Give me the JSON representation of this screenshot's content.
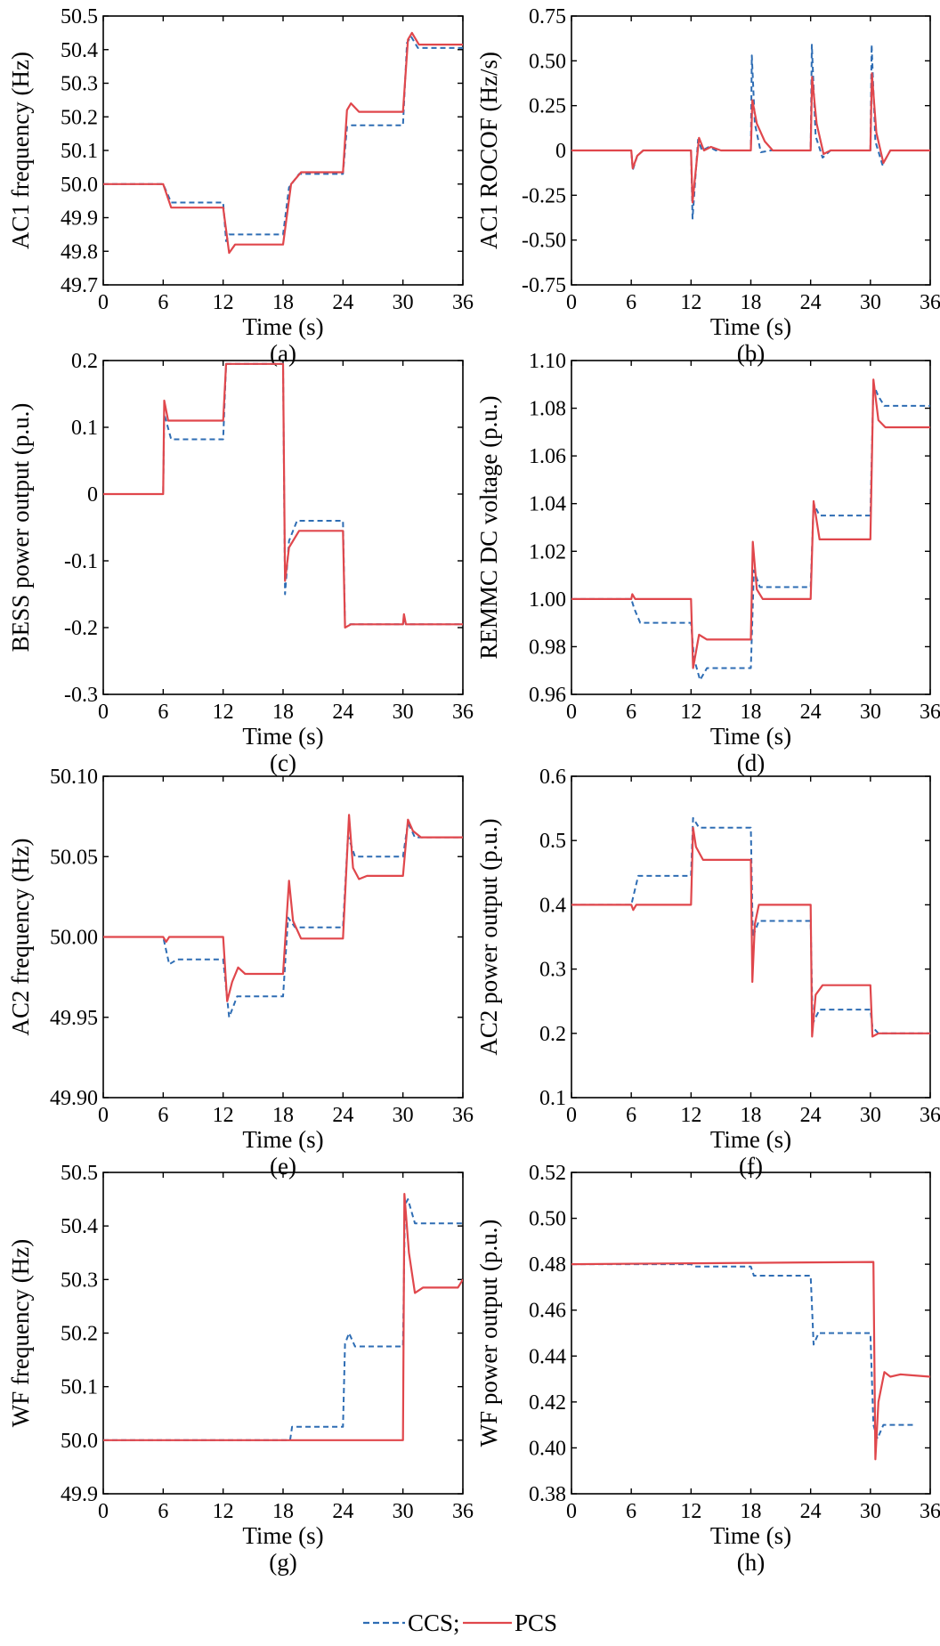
{
  "colors": {
    "ccs": "#2e6db4",
    "pcs": "#e0474c",
    "axis": "#000000"
  },
  "legend": {
    "ccs_label": "CCS;",
    "pcs_label": "PCS"
  },
  "chart_data": [
    {
      "id": "a",
      "type": "line",
      "panel_label": "(a)",
      "xlabel": "Time (s)",
      "ylabel": "AC1 frequency (Hz)",
      "xlim": [
        0,
        36
      ],
      "ylim": [
        49.7,
        50.5
      ],
      "xticks": [
        0,
        6,
        12,
        18,
        24,
        30,
        36
      ],
      "yticks": [
        49.7,
        49.8,
        49.9,
        50.0,
        50.1,
        50.2,
        50.3,
        50.4,
        50.5
      ],
      "ytick_labels": [
        "49.7",
        "49.8",
        "49.9",
        "50.0",
        "50.1",
        "50.2",
        "50.3",
        "50.4",
        "50.5"
      ],
      "series": [
        {
          "name": "CCS",
          "x": [
            0,
            6,
            6.8,
            12,
            12.3,
            12.6,
            13.5,
            18,
            18.6,
            19.6,
            24,
            24.4,
            24.9,
            30,
            30.4,
            30.8,
            31.5,
            36
          ],
          "y": [
            50.0,
            50.0,
            49.945,
            49.945,
            49.83,
            49.85,
            49.85,
            49.85,
            49.99,
            50.03,
            50.03,
            50.17,
            50.175,
            50.175,
            50.42,
            50.44,
            50.405,
            50.405
          ]
        },
        {
          "name": "PCS",
          "x": [
            0,
            6,
            6.8,
            12,
            12.6,
            13.2,
            18,
            18.8,
            19.8,
            24,
            24.4,
            24.8,
            25.6,
            30,
            30.5,
            30.9,
            31.6,
            36
          ],
          "y": [
            50.0,
            50.0,
            49.93,
            49.93,
            49.795,
            49.82,
            49.82,
            50.0,
            50.035,
            50.035,
            50.22,
            50.24,
            50.215,
            50.215,
            50.43,
            50.45,
            50.415,
            50.415
          ]
        }
      ]
    },
    {
      "id": "b",
      "type": "line",
      "panel_label": "(b)",
      "xlabel": "Time (s)",
      "ylabel": "AC1 ROCOF (Hz/s)",
      "xlim": [
        0,
        36
      ],
      "ylim": [
        -0.75,
        0.75
      ],
      "xticks": [
        0,
        6,
        12,
        18,
        24,
        30,
        36
      ],
      "yticks": [
        -0.75,
        -0.5,
        -0.25,
        0,
        0.25,
        0.5,
        0.75
      ],
      "ytick_labels": [
        "-0.75",
        "-0.50",
        "-0.25",
        "0",
        "0.25",
        "0.50",
        "0.75"
      ],
      "series": [
        {
          "name": "CCS",
          "x": [
            0,
            6,
            6.15,
            6.6,
            7.2,
            12,
            12.15,
            12.7,
            13.1,
            13.8,
            14.5,
            18,
            18.1,
            18.4,
            19,
            20,
            24,
            24.12,
            24.5,
            25.2,
            26,
            30,
            30.12,
            30.5,
            31.2,
            32,
            36
          ],
          "y": [
            0,
            0,
            -0.11,
            -0.03,
            0,
            0,
            -0.38,
            0.06,
            0.0,
            0.02,
            0,
            0,
            0.53,
            0.15,
            -0.01,
            0,
            0,
            0.59,
            0.08,
            -0.04,
            0,
            0,
            0.59,
            0.05,
            -0.08,
            0,
            0
          ]
        },
        {
          "name": "PCS",
          "x": [
            0,
            6,
            6.15,
            6.6,
            7.2,
            12,
            12.15,
            12.8,
            13.3,
            14,
            15,
            18,
            18.15,
            18.6,
            19.4,
            20.2,
            24,
            24.15,
            24.6,
            25.3,
            26,
            30,
            30.15,
            30.6,
            31.3,
            32,
            36
          ],
          "y": [
            0,
            0,
            -0.1,
            -0.03,
            0,
            0,
            -0.29,
            0.07,
            0.0,
            0.02,
            0,
            0,
            0.28,
            0.15,
            0.05,
            0,
            0,
            0.41,
            0.15,
            -0.02,
            0,
            0,
            0.43,
            0.1,
            -0.07,
            0,
            0
          ]
        }
      ]
    },
    {
      "id": "c",
      "type": "line",
      "panel_label": "(c)",
      "xlabel": "Time (s)",
      "ylabel": "BESS power output (p.u.)",
      "xlim": [
        0,
        36
      ],
      "ylim": [
        -0.3,
        0.2
      ],
      "xticks": [
        0,
        6,
        12,
        18,
        24,
        30,
        36
      ],
      "yticks": [
        -0.3,
        -0.2,
        -0.1,
        0,
        0.1,
        0.2
      ],
      "ytick_labels": [
        "-0.3",
        "-0.2",
        "-0.1",
        "0",
        "0.1",
        "0.2"
      ],
      "series": [
        {
          "name": "CCS",
          "x": [
            0,
            6,
            6.1,
            6.8,
            12,
            12.3,
            18,
            18.2,
            18.6,
            19.4,
            24,
            24.2,
            24.8,
            30,
            30.1,
            30.3,
            36
          ],
          "y": [
            0,
            0,
            0.12,
            0.082,
            0.082,
            0.195,
            0.195,
            -0.15,
            -0.07,
            -0.04,
            -0.04,
            -0.195,
            -0.195,
            -0.195,
            -0.185,
            -0.195,
            -0.195
          ]
        },
        {
          "name": "PCS",
          "x": [
            0,
            6,
            6.1,
            6.5,
            7.2,
            12,
            12.3,
            18,
            18.2,
            18.6,
            19.6,
            24,
            24.2,
            24.8,
            30,
            30.1,
            30.3,
            36
          ],
          "y": [
            0,
            0,
            0.14,
            0.11,
            0.11,
            0.11,
            0.195,
            0.195,
            -0.13,
            -0.08,
            -0.055,
            -0.055,
            -0.2,
            -0.195,
            -0.195,
            -0.18,
            -0.195,
            -0.195
          ]
        }
      ]
    },
    {
      "id": "d",
      "type": "line",
      "panel_label": "(d)",
      "xlabel": "Time (s)",
      "ylabel": "REMMC DC voltage (p.u.)",
      "xlim": [
        0,
        36
      ],
      "ylim": [
        0.96,
        1.1
      ],
      "xticks": [
        0,
        6,
        12,
        18,
        24,
        30,
        36
      ],
      "yticks": [
        0.96,
        0.98,
        1.0,
        1.02,
        1.04,
        1.06,
        1.08,
        1.1
      ],
      "ytick_labels": [
        "0.96",
        "0.98",
        "1.00",
        "1.02",
        "1.04",
        "1.06",
        "1.08",
        "1.10"
      ],
      "series": [
        {
          "name": "CCS",
          "x": [
            0,
            6,
            6.3,
            6.9,
            12,
            12.3,
            12.9,
            13.6,
            18,
            18.3,
            18.9,
            24,
            24.3,
            24.9,
            30,
            30.3,
            30.8,
            31.4,
            36
          ],
          "y": [
            1.0,
            1.0,
            0.996,
            0.99,
            0.99,
            0.975,
            0.966,
            0.971,
            0.971,
            1.012,
            1.005,
            1.005,
            1.04,
            1.035,
            1.035,
            1.09,
            1.085,
            1.081,
            1.081
          ]
        },
        {
          "name": "PCS",
          "x": [
            0,
            6,
            6.1,
            6.4,
            12,
            12.2,
            12.8,
            13.6,
            18,
            18.2,
            18.6,
            19.2,
            24,
            24.3,
            24.9,
            30,
            30.3,
            30.8,
            31.5,
            36
          ],
          "y": [
            1.0,
            1.0,
            1.002,
            1.0,
            1.0,
            0.971,
            0.985,
            0.983,
            0.983,
            1.024,
            1.004,
            1.0,
            1.0,
            1.041,
            1.025,
            1.025,
            1.092,
            1.075,
            1.072,
            1.072
          ]
        }
      ]
    },
    {
      "id": "e",
      "type": "line",
      "panel_label": "(e)",
      "xlabel": "Time (s)",
      "ylabel": "AC2 frequency (Hz)",
      "xlim": [
        0,
        36
      ],
      "ylim": [
        49.9,
        50.1
      ],
      "xticks": [
        0,
        6,
        12,
        18,
        24,
        30,
        36
      ],
      "yticks": [
        49.9,
        49.95,
        50.0,
        50.05,
        50.1
      ],
      "ytick_labels": [
        "49.90",
        "49.95",
        "50.00",
        "50.05",
        "50.10"
      ],
      "series": [
        {
          "name": "CCS",
          "x": [
            0,
            6,
            6.6,
            7.4,
            12,
            12.6,
            13.4,
            18,
            18.5,
            19.2,
            24,
            24.5,
            25.2,
            30,
            30.5,
            31.2,
            36
          ],
          "y": [
            50.0,
            50.0,
            49.983,
            49.986,
            49.986,
            49.95,
            49.963,
            49.963,
            50.012,
            50.006,
            50.006,
            50.063,
            50.05,
            50.05,
            50.071,
            50.062,
            50.062
          ]
        },
        {
          "name": "PCS",
          "x": [
            0,
            6,
            6.3,
            6.6,
            12,
            12.4,
            12.9,
            13.5,
            14.2,
            18,
            18.6,
            19.0,
            19.8,
            24,
            24.6,
            25.0,
            25.6,
            26.4,
            30,
            30.5,
            31.0,
            31.8,
            36
          ],
          "y": [
            50.0,
            50.0,
            49.997,
            50.0,
            50.0,
            49.96,
            49.972,
            49.981,
            49.977,
            49.977,
            50.035,
            50.01,
            49.999,
            49.999,
            50.076,
            50.043,
            50.036,
            50.038,
            50.038,
            50.073,
            50.066,
            50.062,
            50.062
          ]
        }
      ]
    },
    {
      "id": "f",
      "type": "line",
      "panel_label": "(f)",
      "xlabel": "Time (s)",
      "ylabel": "AC2 power output (p.u.)",
      "xlim": [
        0,
        36
      ],
      "ylim": [
        0.1,
        0.6
      ],
      "xticks": [
        0,
        6,
        12,
        18,
        24,
        30,
        36
      ],
      "yticks": [
        0.1,
        0.2,
        0.3,
        0.4,
        0.5,
        0.6
      ],
      "ytick_labels": [
        "0.1",
        "0.2",
        "0.3",
        "0.4",
        "0.5",
        "0.6"
      ],
      "series": [
        {
          "name": "CCS",
          "x": [
            0,
            6,
            6.7,
            12,
            12.2,
            12.8,
            18,
            18.2,
            18.8,
            24,
            24.2,
            24.9,
            30,
            30.2,
            30.8,
            36
          ],
          "y": [
            0.4,
            0.4,
            0.445,
            0.445,
            0.535,
            0.52,
            0.52,
            0.35,
            0.375,
            0.375,
            0.215,
            0.237,
            0.237,
            0.21,
            0.2,
            0.2
          ]
        },
        {
          "name": "PCS",
          "x": [
            0,
            6,
            6.2,
            6.5,
            12,
            12.2,
            12.5,
            13.2,
            18,
            18.15,
            18.4,
            18.8,
            24,
            24.15,
            24.5,
            25.2,
            30,
            30.2,
            30.8,
            36
          ],
          "y": [
            0.4,
            0.4,
            0.392,
            0.4,
            0.4,
            0.52,
            0.49,
            0.47,
            0.47,
            0.28,
            0.37,
            0.4,
            0.4,
            0.195,
            0.26,
            0.275,
            0.275,
            0.195,
            0.2,
            0.2
          ]
        }
      ]
    },
    {
      "id": "g",
      "type": "line",
      "panel_label": "(g)",
      "xlabel": "Time (s)",
      "ylabel": "WF frequency (Hz)",
      "xlim": [
        0,
        36
      ],
      "ylim": [
        49.9,
        50.5
      ],
      "xticks": [
        0,
        6,
        12,
        18,
        24,
        30,
        36
      ],
      "yticks": [
        49.9,
        50.0,
        50.1,
        50.2,
        50.3,
        50.4,
        50.5
      ],
      "ytick_labels": [
        "49.9",
        "50.0",
        "50.1",
        "50.2",
        "50.3",
        "50.4",
        "50.5"
      ],
      "series": [
        {
          "name": "CCS",
          "x": [
            0,
            18.7,
            18.9,
            24,
            24.2,
            24.6,
            25.2,
            30,
            30.2,
            30.5,
            31.2,
            36
          ],
          "y": [
            50.0,
            50.0,
            50.025,
            50.025,
            50.18,
            50.2,
            50.175,
            50.175,
            50.44,
            50.45,
            50.405,
            50.405
          ]
        },
        {
          "name": "PCS",
          "x": [
            0,
            30,
            30.15,
            30.6,
            31.2,
            32,
            35.5,
            36
          ],
          "y": [
            50.0,
            50.0,
            50.46,
            50.35,
            50.275,
            50.285,
            50.285,
            50.3
          ]
        }
      ]
    },
    {
      "id": "h",
      "type": "line",
      "panel_label": "(h)",
      "xlabel": "Time (s)",
      "ylabel": "WF power output (p.u.)",
      "xlim": [
        0,
        36
      ],
      "ylim": [
        0.38,
        0.52
      ],
      "xticks": [
        0,
        6,
        12,
        18,
        24,
        30,
        36
      ],
      "yticks": [
        0.38,
        0.4,
        0.42,
        0.44,
        0.46,
        0.48,
        0.5,
        0.52
      ],
      "ytick_labels": [
        "0.38",
        "0.40",
        "0.42",
        "0.44",
        "0.46",
        "0.48",
        "0.50",
        "0.52"
      ],
      "series": [
        {
          "name": "CCS",
          "x": [
            0,
            12,
            12.3,
            18,
            18.3,
            24,
            24.3,
            24.8,
            30,
            30.3,
            30.7,
            31.3,
            34.5
          ],
          "y": [
            0.48,
            0.48,
            0.479,
            0.479,
            0.475,
            0.475,
            0.445,
            0.45,
            0.45,
            0.41,
            0.404,
            0.41,
            0.41
          ]
        },
        {
          "name": "PCS",
          "x": [
            0,
            30.3,
            30.5,
            30.8,
            31.4,
            32,
            33,
            36
          ],
          "y": [
            0.48,
            0.481,
            0.395,
            0.42,
            0.433,
            0.431,
            0.432,
            0.431
          ]
        }
      ]
    }
  ]
}
